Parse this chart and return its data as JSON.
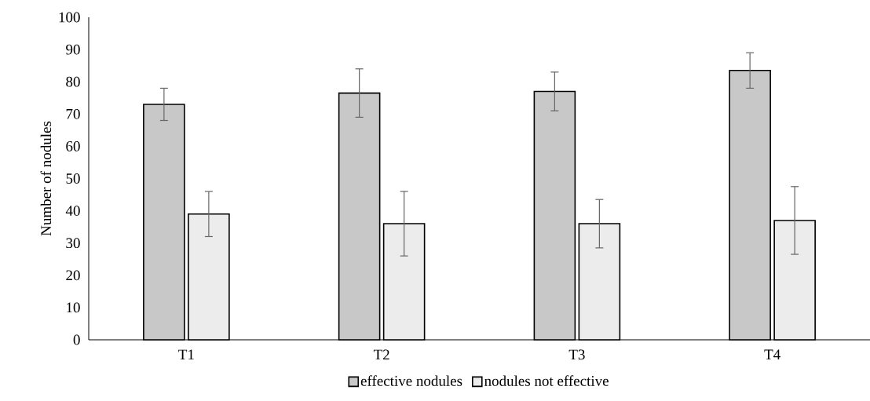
{
  "chart_data": {
    "type": "bar",
    "ylabel": "Number of nodules",
    "categories": [
      "T1",
      "T2",
      "T3",
      "T4"
    ],
    "series": [
      {
        "name": "effective nodules",
        "color": "#c8c8c8",
        "values": [
          73,
          76.5,
          77,
          83.5
        ],
        "errors": [
          5,
          7.5,
          6,
          5.5
        ]
      },
      {
        "name": "nodules not effective",
        "color": "#ececec",
        "values": [
          39,
          36,
          36,
          37
        ],
        "errors": [
          7,
          10,
          7.5,
          10.5
        ]
      }
    ],
    "ylim": [
      0,
      100
    ],
    "yticks": [
      0,
      10,
      20,
      30,
      40,
      50,
      60,
      70,
      80,
      90,
      100
    ],
    "legend": "bottom",
    "grid": false
  }
}
